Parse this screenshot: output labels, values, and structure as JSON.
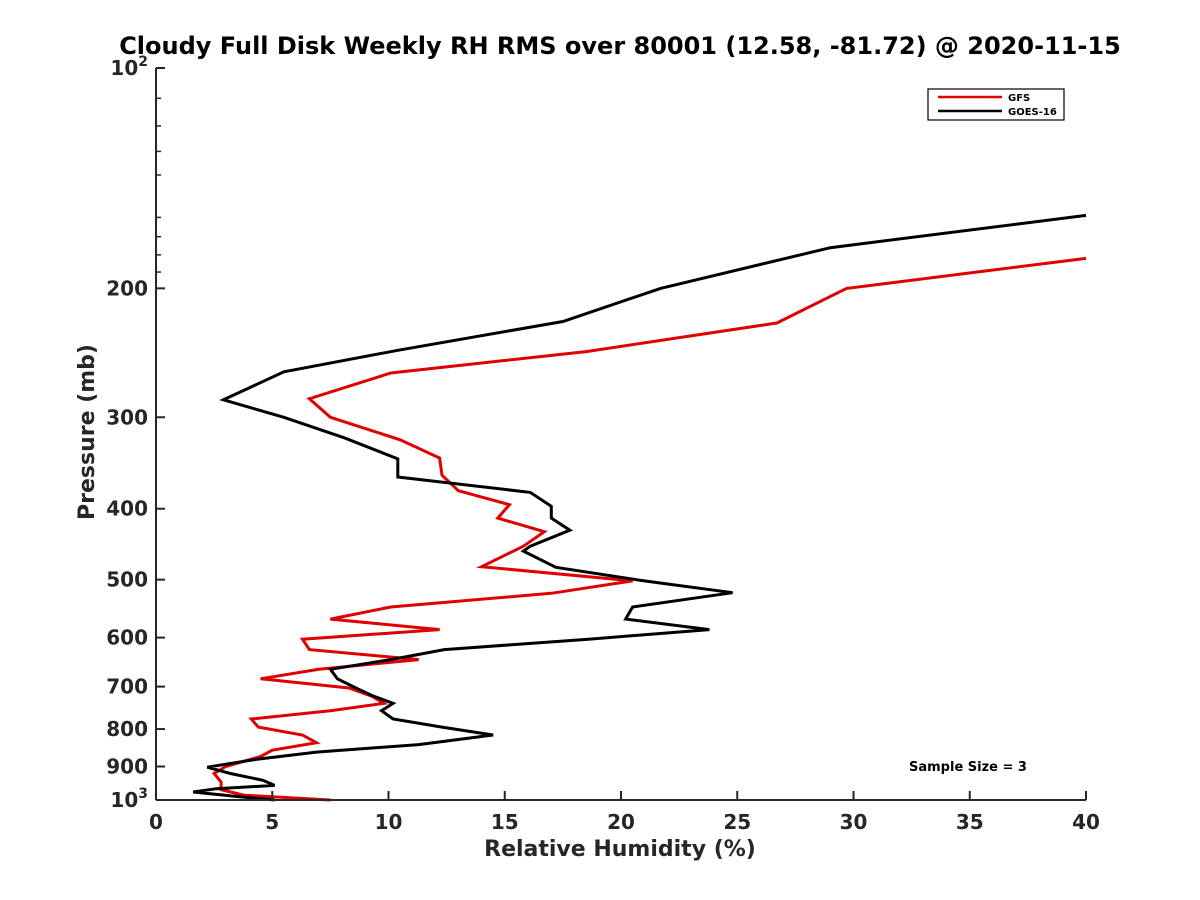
{
  "chart_data": {
    "type": "line",
    "title": "Cloudy Full Disk Weekly RH RMS over 80001 (12.58, -81.72) @ 2020-11-15",
    "xlabel": "Relative Humidity (%)",
    "ylabel": "Pressure (mb)",
    "xlim": [
      0,
      40
    ],
    "ylim": [
      100,
      1000
    ],
    "y_scale": "log",
    "y_reversed": true,
    "x_ticks": [
      "0",
      "5",
      "10",
      "15",
      "20",
      "25",
      "30",
      "35",
      "40"
    ],
    "y_ticks": [
      {
        "value": 100,
        "base": "10",
        "exp": "2"
      },
      {
        "value": 200,
        "label": "200"
      },
      {
        "value": 300,
        "label": "300"
      },
      {
        "value": 400,
        "label": "400"
      },
      {
        "value": 500,
        "label": "500"
      },
      {
        "value": 600,
        "label": "600"
      },
      {
        "value": 700,
        "label": "700"
      },
      {
        "value": 800,
        "label": "800"
      },
      {
        "value": 900,
        "label": "900"
      },
      {
        "value": 1000,
        "base": "10",
        "exp": "3"
      }
    ],
    "legend_position": "top-right",
    "grid": false,
    "annotation": "Sample Size = 3",
    "series": [
      {
        "name": "GFS",
        "color": "#e00000",
        "points": [
          [
            40,
            182
          ],
          [
            29.7,
            200
          ],
          [
            26.7,
            223
          ],
          [
            18.5,
            244
          ],
          [
            10.1,
            261
          ],
          [
            6.6,
            283
          ],
          [
            7.5,
            300
          ],
          [
            10.5,
            322
          ],
          [
            12.2,
            341
          ],
          [
            12.3,
            360
          ],
          [
            13.0,
            378
          ],
          [
            15.2,
            395
          ],
          [
            14.7,
            412
          ],
          [
            16.7,
            430
          ],
          [
            15.8,
            450
          ],
          [
            14.0,
            480
          ],
          [
            20.5,
            502
          ],
          [
            17.0,
            522
          ],
          [
            10.1,
            545
          ],
          [
            7.5,
            566
          ],
          [
            12.2,
            585
          ],
          [
            6.3,
            603
          ],
          [
            6.6,
            623
          ],
          [
            11.3,
            643
          ],
          [
            7.0,
            663
          ],
          [
            4.5,
            683
          ],
          [
            8.3,
            703
          ],
          [
            9.3,
            722
          ],
          [
            9.8,
            738
          ],
          [
            7.5,
            755
          ],
          [
            4.1,
            775
          ],
          [
            4.4,
            795
          ],
          [
            6.3,
            815
          ],
          [
            6.9,
            835
          ],
          [
            5.0,
            855
          ],
          [
            4.5,
            872
          ],
          [
            3.0,
            900
          ],
          [
            2.5,
            920
          ],
          [
            2.8,
            945
          ],
          [
            2.8,
            968
          ],
          [
            3.8,
            985
          ],
          [
            7.5,
            1000
          ]
        ]
      },
      {
        "name": "GOES-16",
        "color": "#000000",
        "points": [
          [
            40,
            159
          ],
          [
            29.0,
            176
          ],
          [
            21.7,
            200
          ],
          [
            17.5,
            222
          ],
          [
            10.4,
            243
          ],
          [
            5.5,
            260
          ],
          [
            2.9,
            284
          ],
          [
            5.5,
            300
          ],
          [
            8.1,
            320
          ],
          [
            10.4,
            342
          ],
          [
            10.4,
            362
          ],
          [
            16.1,
            380
          ],
          [
            17.0,
            397
          ],
          [
            17.0,
            412
          ],
          [
            17.8,
            428
          ],
          [
            16.1,
            450
          ],
          [
            15.8,
            457
          ],
          [
            17.2,
            481
          ],
          [
            21.0,
            502
          ],
          [
            24.8,
            521
          ],
          [
            20.5,
            545
          ],
          [
            20.2,
            566
          ],
          [
            23.8,
            585
          ],
          [
            18.6,
            603
          ],
          [
            12.4,
            623
          ],
          [
            10.1,
            643
          ],
          [
            7.5,
            663
          ],
          [
            7.8,
            683
          ],
          [
            8.6,
            703
          ],
          [
            9.3,
            720
          ],
          [
            10.2,
            738
          ],
          [
            9.7,
            755
          ],
          [
            10.2,
            775
          ],
          [
            12.3,
            795
          ],
          [
            14.5,
            815
          ],
          [
            11.3,
            840
          ],
          [
            6.9,
            860
          ],
          [
            4.3,
            880
          ],
          [
            2.2,
            902
          ],
          [
            3.2,
            920
          ],
          [
            4.6,
            940
          ],
          [
            5.1,
            955
          ],
          [
            2.6,
            965
          ],
          [
            1.6,
            975
          ],
          [
            3.6,
            990
          ],
          [
            5.1,
            1000
          ]
        ]
      }
    ]
  }
}
